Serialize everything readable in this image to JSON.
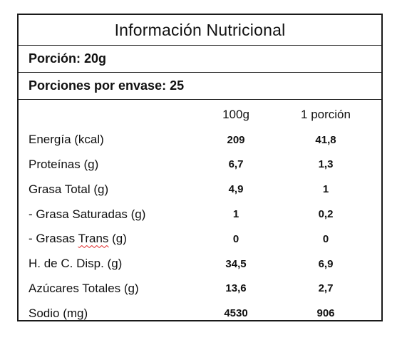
{
  "label": {
    "title": "Información Nutricional",
    "serving_size": "Porción: 20g",
    "servings_per_container": "Porciones por envase: 25",
    "columns": {
      "per_100g": "100g",
      "per_serving": "1 porción"
    },
    "rows": [
      {
        "name": "Energía (kcal)",
        "per_100g": "209",
        "per_serving": "41,8"
      },
      {
        "name": "Proteínas (g)",
        "per_100g": "6,7",
        "per_serving": "1,3"
      },
      {
        "name": "Grasa Total (g)",
        "per_100g": "4,9",
        "per_serving": "1"
      },
      {
        "name": "- Grasa Saturadas (g)",
        "per_100g": "1",
        "per_serving": "0,2"
      },
      {
        "name_prefix": "- Grasas ",
        "name_marked": "Trans",
        "name_suffix": " (g)",
        "per_100g": "0",
        "per_serving": "0"
      },
      {
        "name": "H. de C. Disp. (g)",
        "per_100g": "34,5",
        "per_serving": "6,9"
      },
      {
        "name": "Azúcares Totales (g)",
        "per_100g": "13,6",
        "per_serving": "2,7"
      },
      {
        "name": "Sodio (mg)",
        "per_100g": "4530",
        "per_serving": "906"
      }
    ]
  }
}
